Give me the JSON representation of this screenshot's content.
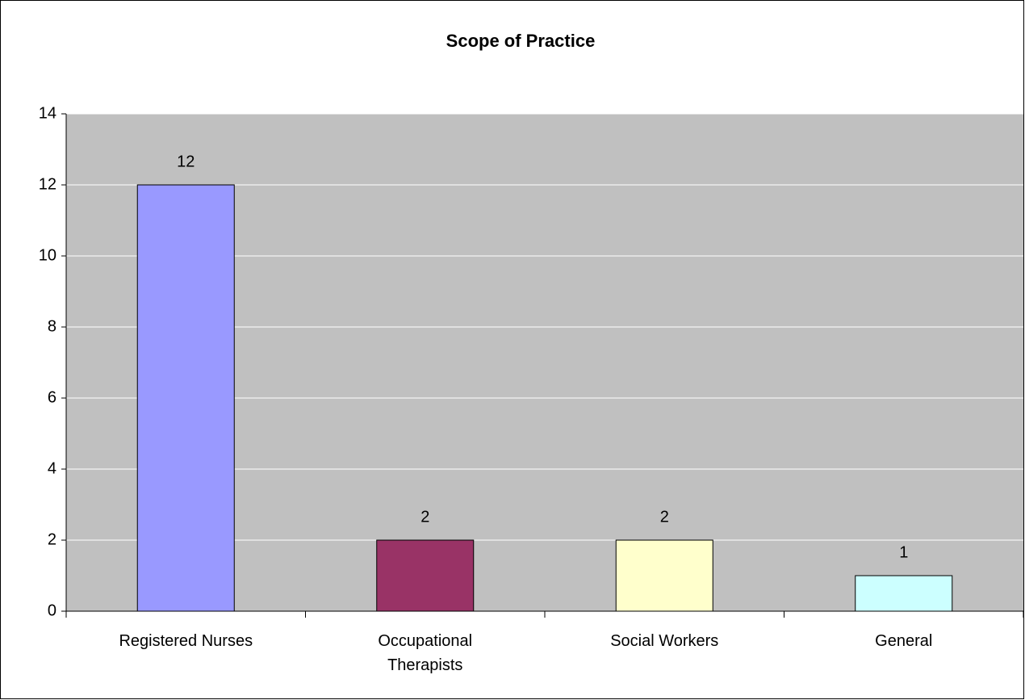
{
  "chart_data": {
    "type": "bar",
    "title": "Scope of Practice",
    "categories": [
      "Registered Nurses",
      "Occupational Therapists",
      "Social Workers",
      "General"
    ],
    "values": [
      12,
      2,
      2,
      1
    ],
    "colors": [
      "#9999ff",
      "#993366",
      "#ffffcc",
      "#ccffff"
    ],
    "ylim": [
      0,
      14
    ],
    "yticks": [
      0,
      2,
      4,
      6,
      8,
      10,
      12,
      14
    ],
    "grid": true
  }
}
